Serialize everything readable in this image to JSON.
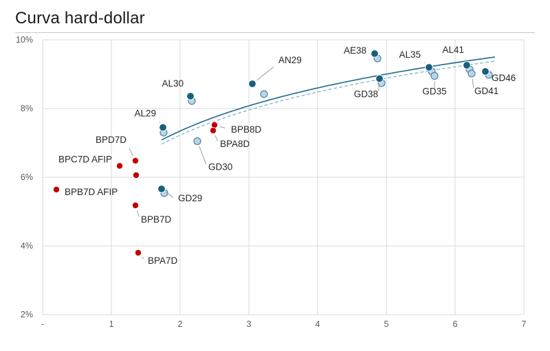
{
  "title": "Curva hard-dollar",
  "colors": {
    "dark_point": "#17607f",
    "light_point_fill": "#b9d5e4",
    "light_point_stroke": "#4e86a5",
    "red_point": "#c00000",
    "grid": "#d9d9d9",
    "axis_text": "#595959",
    "label_text": "#262626",
    "leader": "#9e9e9e",
    "curve_solid": "#27708f",
    "curve_dashed": "#83b3cb",
    "title_text": "#1a1a1a",
    "rule": "#c9c9c9"
  },
  "chart_data": {
    "type": "scatter",
    "title": "Curva hard-dollar",
    "xlabel": "",
    "ylabel": "",
    "x_axis": {
      "min": 0,
      "max": 7,
      "tick_values": [
        0,
        1,
        2,
        3,
        4,
        5,
        6,
        7
      ],
      "tick_labels": [
        "-",
        "1",
        "2",
        "3",
        "4",
        "5",
        "6",
        "7"
      ]
    },
    "y_axis": {
      "min": 2,
      "max": 10,
      "tick_values": [
        2,
        4,
        6,
        8,
        10
      ],
      "tick_labels": [
        "2%",
        "4%",
        "6%",
        "8%",
        "10%"
      ],
      "unit": "%"
    },
    "grid": true,
    "legend": "none",
    "series": [
      {
        "name": "light-blue",
        "points": [
          {
            "x": 1.76,
            "y": 7.3
          },
          {
            "x": 1.77,
            "y": 5.54
          },
          {
            "x": 2.17,
            "y": 8.22
          },
          {
            "label": "GD30",
            "x": 2.25,
            "y": 7.05,
            "lx": 16,
            "ly": 42,
            "anchor": "start"
          },
          {
            "x": 3.22,
            "y": 8.42
          },
          {
            "x": 4.87,
            "y": 9.46
          },
          {
            "x": 4.93,
            "y": 8.74
          },
          {
            "x": 5.66,
            "y": 9.08
          },
          {
            "label": "GD35",
            "x": 5.7,
            "y": 8.95,
            "lx": 0,
            "ly": 27,
            "anchor": "middle"
          },
          {
            "x": 6.21,
            "y": 9.14
          },
          {
            "label": "GD41",
            "x": 6.24,
            "y": 9.02,
            "lx": 4,
            "ly": 30,
            "anchor": "start"
          },
          {
            "x": 6.49,
            "y": 8.98
          }
        ]
      },
      {
        "name": "dark-blue",
        "points": [
          {
            "label": "AL29",
            "x": 1.75,
            "y": 7.45,
            "lx": -10,
            "ly": -16,
            "anchor": "end"
          },
          {
            "label": "GD29",
            "x": 1.73,
            "y": 5.66,
            "lx": 24,
            "ly": 18,
            "anchor": "start"
          },
          {
            "label": "AL30",
            "x": 2.15,
            "y": 8.36,
            "lx": -10,
            "ly": -14,
            "anchor": "end"
          },
          {
            "label": "AN29",
            "x": 3.05,
            "y": 8.72,
            "lx": 38,
            "ly": -30,
            "anchor": "start"
          },
          {
            "label": "AE38",
            "x": 4.83,
            "y": 9.6,
            "lx": -12,
            "ly": -4,
            "anchor": "end"
          },
          {
            "label": "GD38",
            "x": 4.9,
            "y": 8.87,
            "lx": -2,
            "ly": 27,
            "anchor": "end"
          },
          {
            "label": "AL35",
            "x": 5.62,
            "y": 9.2,
            "lx": -12,
            "ly": -14,
            "anchor": "end"
          },
          {
            "label": "AL41",
            "x": 6.17,
            "y": 9.26,
            "lx": -4,
            "ly": -18,
            "anchor": "end"
          },
          {
            "label": "GD46",
            "x": 6.44,
            "y": 9.08,
            "lx": 9,
            "ly": 10,
            "anchor": "start"
          }
        ]
      },
      {
        "name": "red",
        "points": [
          {
            "label": "BPB7D AFIP",
            "x": 0.2,
            "y": 5.64,
            "lx": 12,
            "ly": 4,
            "anchor": "start"
          },
          {
            "label": "BPC7D AFIP",
            "x": 1.12,
            "y": 6.33,
            "lx": -11,
            "ly": -9,
            "anchor": "end"
          },
          {
            "label": "BPD7D",
            "x": 1.35,
            "y": 6.48,
            "lx": -13,
            "ly": -26,
            "anchor": "end"
          },
          {
            "x": 1.36,
            "y": 6.06
          },
          {
            "label": "BPB7D",
            "x": 1.35,
            "y": 5.18,
            "lx": 8,
            "ly": 25,
            "anchor": "start"
          },
          {
            "label": "BPA7D",
            "x": 1.39,
            "y": 3.8,
            "lx": 14,
            "ly": 16,
            "anchor": "start"
          },
          {
            "label": "BPB8D",
            "x": 2.5,
            "y": 7.52,
            "lx": 24,
            "ly": 7,
            "anchor": "start"
          },
          {
            "label": "BPA8D",
            "x": 2.48,
            "y": 7.36,
            "lx": 10,
            "ly": 24,
            "anchor": "start"
          }
        ]
      }
    ],
    "trend_lines": [
      {
        "style": "solid",
        "fit": "log",
        "a": 6.09,
        "b": 1.81,
        "x_start": 1.73,
        "x_end": 6.62
      },
      {
        "style": "dashed",
        "fit": "log",
        "a": 5.97,
        "b": 1.81,
        "x_start": 1.73,
        "x_end": 6.62
      }
    ]
  }
}
